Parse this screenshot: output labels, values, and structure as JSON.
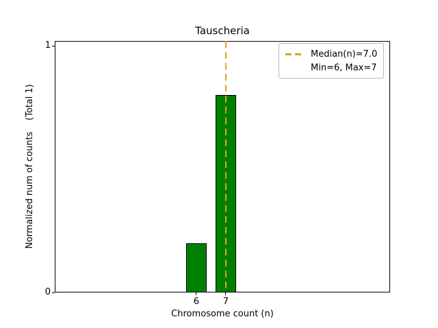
{
  "chart_data": {
    "type": "bar",
    "title": "Tauscheria",
    "xlabel": "Chromosome count (n)",
    "ylabel": "Normalized num of counts    (Total 1)",
    "categories": [
      6,
      7
    ],
    "values": [
      0.2,
      0.8
    ],
    "bar_width_units": 0.7,
    "bar_color": "#008000",
    "bar_edge_color": "#000000",
    "xticks": [
      "6",
      "7"
    ],
    "xtick_values": [
      6,
      7
    ],
    "yticks": [
      "0",
      "1"
    ],
    "ytick_values": [
      0,
      1
    ],
    "xlim": [
      1.19,
      12.58
    ],
    "ylim": [
      0,
      1.02
    ],
    "grid": false,
    "median_line": {
      "x": 7,
      "color": "#DAA520",
      "style": "dashed"
    },
    "legend": {
      "position": "top-right",
      "items": [
        {
          "sample": "dashed-line",
          "color": "#DAA520",
          "label": "Median(n)=7.0"
        },
        {
          "sample": "none",
          "label": "Min=6, Max=7"
        }
      ]
    }
  }
}
